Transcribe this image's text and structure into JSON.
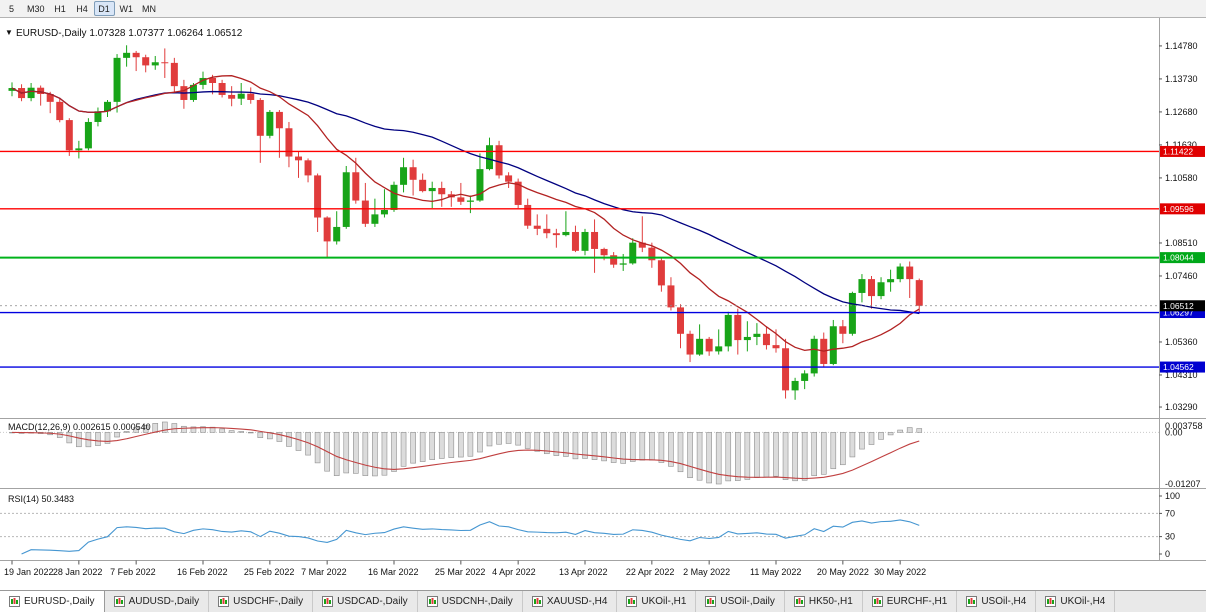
{
  "toolbar": {
    "timeframes": [
      "5",
      "M30",
      "H1",
      "H4",
      "D1",
      "W1",
      "MN"
    ],
    "active": "D1"
  },
  "chart_header": {
    "symbol": "EURUSD-,Daily",
    "open": "1.07328",
    "high": "1.07377",
    "low": "1.06264",
    "close": "1.06512",
    "text": "EURUSD-,Daily 1.07328 1.07377 1.06264 1.06512"
  },
  "indicators": {
    "macd": {
      "title": "MACD(12,26,9) 0.002615 0.000540",
      "name": "MACD(12,26,9)",
      "values": "0.002615 0.000540",
      "params": {
        "fast": 12,
        "slow": 26,
        "signal": 9
      },
      "axis_labels": [
        "0.003758",
        "0.00",
        "-0.01207"
      ]
    },
    "rsi": {
      "title": "RSI(14) 50.3483",
      "name": "RSI(14)",
      "value": "50.3483",
      "period": 14,
      "levels": [
        70,
        30
      ],
      "axis_labels": [
        {
          "value": 100,
          "label": "100"
        },
        {
          "value": 70,
          "label": "70"
        },
        {
          "value": 30,
          "label": "30"
        },
        {
          "value": 0,
          "label": "0"
        }
      ]
    }
  },
  "colors": {
    "candle_up": "#18A418",
    "candle_down": "#E03C3C",
    "ma_fast": "#B22222",
    "ma_slow": "#000080",
    "hline_red": "#FF0000",
    "hline_green": "#00B31B",
    "hline_blue": "#0000E0",
    "macd_bar_fill": "#DCDCDC",
    "macd_bar_stroke": "#8F8F8F",
    "macd_signal": "#C04040",
    "rsi_line": "#4596D1",
    "badge_current": "#000000",
    "badge_red": "#E00000",
    "badge_green": "#00A819",
    "badge_blue": "#0000D0"
  },
  "chart_data": {
    "type": "candlestick",
    "symbol": "EURUSD",
    "timeframe": "Daily",
    "y_axis": {
      "top_price": 1.1535,
      "bottom_price": 1.031,
      "labels": [
        {
          "value": 1.1478,
          "label": "1.14780"
        },
        {
          "value": 1.1373,
          "label": "1.13730"
        },
        {
          "value": 1.1268,
          "label": "1.12680"
        },
        {
          "value": 1.1163,
          "label": "1.11630"
        },
        {
          "value": 1.1058,
          "label": "1.10580"
        },
        {
          "value": 1.0851,
          "label": "1.08510"
        },
        {
          "value": 1.0746,
          "label": "1.07460"
        },
        {
          "value": 1.0536,
          "label": "1.05360"
        },
        {
          "value": 1.0431,
          "label": "1.04310"
        },
        {
          "value": 1.0329,
          "label": "1.03290"
        }
      ]
    },
    "x_axis": {
      "ticks": [
        {
          "index": 0,
          "label": "19 Jan 2022"
        },
        {
          "index": 7,
          "label": "28 Jan 2022"
        },
        {
          "index": 13,
          "label": "7 Feb 2022"
        },
        {
          "index": 20,
          "label": "16 Feb 2022"
        },
        {
          "index": 27,
          "label": "25 Feb 2022"
        },
        {
          "index": 33,
          "label": "7 Mar 2022"
        },
        {
          "index": 40,
          "label": "16 Mar 2022"
        },
        {
          "index": 47,
          "label": "25 Mar 2022"
        },
        {
          "index": 53,
          "label": "4 Apr 2022"
        },
        {
          "index": 60,
          "label": "13 Apr 2022"
        },
        {
          "index": 67,
          "label": "22 Apr 2022"
        },
        {
          "index": 73,
          "label": "2 May 2022"
        },
        {
          "index": 80,
          "label": "11 May 2022"
        },
        {
          "index": 87,
          "label": "20 May 2022"
        },
        {
          "index": 93,
          "label": "30 May 2022"
        }
      ]
    },
    "moving_averages": [
      {
        "period": 34,
        "color": "#000080"
      },
      {
        "period": 13,
        "color": "#B22222"
      }
    ],
    "h_lines": [
      {
        "price": 1.11422,
        "color": "#FF0000",
        "width": 1.4
      },
      {
        "price": 1.09596,
        "color": "#FF0000",
        "width": 1.4
      },
      {
        "price": 1.08044,
        "color": "#00B31B",
        "width": 2
      },
      {
        "price": 1.06297,
        "color": "#0000E0",
        "width": 1.4
      },
      {
        "price": 1.04562,
        "color": "#0000E0",
        "width": 1.4
      }
    ],
    "price_badges": [
      {
        "value": 1.11422,
        "label": "1.11422",
        "color": "#E00000"
      },
      {
        "value": 1.09596,
        "label": "1.09596",
        "color": "#E00000"
      },
      {
        "value": 1.08044,
        "label": "1.08044",
        "color": "#00A819"
      },
      {
        "value": 1.06297,
        "label": "1.06297",
        "color": "#0000D0"
      },
      {
        "value": 1.06512,
        "label": "1.06512",
        "color": "#000000"
      },
      {
        "value": 1.04562,
        "label": "1.04562",
        "color": "#0000D0"
      }
    ],
    "candles": [
      [
        1.1335,
        1.1362,
        1.1318,
        1.1344
      ],
      [
        1.1344,
        1.1356,
        1.1302,
        1.1312
      ],
      [
        1.1312,
        1.136,
        1.1302,
        1.1345
      ],
      [
        1.1345,
        1.1352,
        1.1288,
        1.1325
      ],
      [
        1.1325,
        1.1332,
        1.1264,
        1.13
      ],
      [
        1.13,
        1.131,
        1.1235,
        1.1242
      ],
      [
        1.1242,
        1.1248,
        1.1128,
        1.1146
      ],
      [
        1.1146,
        1.1176,
        1.112,
        1.1152
      ],
      [
        1.1152,
        1.1248,
        1.1146,
        1.1236
      ],
      [
        1.1236,
        1.1282,
        1.1222,
        1.127
      ],
      [
        1.127,
        1.1306,
        1.1252,
        1.13
      ],
      [
        1.13,
        1.1452,
        1.1266,
        1.144
      ],
      [
        1.144,
        1.148,
        1.1412,
        1.1456
      ],
      [
        1.1456,
        1.1462,
        1.1398,
        1.1442
      ],
      [
        1.1442,
        1.145,
        1.1394,
        1.1416
      ],
      [
        1.1416,
        1.1446,
        1.1402,
        1.1426
      ],
      [
        1.1426,
        1.147,
        1.1376,
        1.1424
      ],
      [
        1.1424,
        1.144,
        1.1328,
        1.135
      ],
      [
        1.135,
        1.137,
        1.1278,
        1.1306
      ],
      [
        1.1306,
        1.136,
        1.13,
        1.1354
      ],
      [
        1.1354,
        1.1396,
        1.134,
        1.1376
      ],
      [
        1.1376,
        1.1386,
        1.1324,
        1.136
      ],
      [
        1.136,
        1.137,
        1.1314,
        1.1322
      ],
      [
        1.1322,
        1.135,
        1.1286,
        1.131
      ],
      [
        1.131,
        1.136,
        1.129,
        1.1326
      ],
      [
        1.1326,
        1.1346,
        1.1294,
        1.1306
      ],
      [
        1.1306,
        1.1312,
        1.1106,
        1.1192
      ],
      [
        1.1192,
        1.1274,
        1.1184,
        1.1268
      ],
      [
        1.1268,
        1.1274,
        1.1122,
        1.1216
      ],
      [
        1.1216,
        1.1236,
        1.1092,
        1.1126
      ],
      [
        1.1126,
        1.1142,
        1.1058,
        1.1114
      ],
      [
        1.1114,
        1.112,
        1.1044,
        1.1066
      ],
      [
        1.1066,
        1.1072,
        1.0886,
        1.0932
      ],
      [
        1.0932,
        1.0936,
        1.0806,
        1.0856
      ],
      [
        1.0856,
        1.0952,
        1.0846,
        1.0902
      ],
      [
        1.0902,
        1.1096,
        1.0896,
        1.1076
      ],
      [
        1.1076,
        1.1122,
        1.0976,
        1.0986
      ],
      [
        1.0986,
        1.1042,
        1.0902,
        1.0912
      ],
      [
        1.0912,
        1.0992,
        1.0902,
        1.0942
      ],
      [
        1.0942,
        1.1022,
        1.0932,
        1.0956
      ],
      [
        1.0956,
        1.1046,
        1.095,
        1.1036
      ],
      [
        1.1036,
        1.1122,
        1.1012,
        1.1092
      ],
      [
        1.1092,
        1.1116,
        1.1002,
        1.1052
      ],
      [
        1.1052,
        1.1072,
        1.1012,
        1.1016
      ],
      [
        1.1016,
        1.1046,
        1.0962,
        1.1026
      ],
      [
        1.1026,
        1.1046,
        1.0966,
        1.1006
      ],
      [
        1.1006,
        1.1016,
        1.0966,
        1.0996
      ],
      [
        1.0996,
        1.1042,
        1.0972,
        1.0982
      ],
      [
        1.0982,
        1.1002,
        1.0946,
        1.0986
      ],
      [
        1.0986,
        1.1136,
        1.0982,
        1.1086
      ],
      [
        1.1086,
        1.1186,
        1.1082,
        1.1162
      ],
      [
        1.1162,
        1.1176,
        1.1056,
        1.1066
      ],
      [
        1.1066,
        1.1076,
        1.1026,
        1.1046
      ],
      [
        1.1046,
        1.1056,
        1.0962,
        1.0972
      ],
      [
        1.0972,
        1.0992,
        1.0896,
        1.0906
      ],
      [
        1.0906,
        1.0942,
        1.0876,
        1.0896
      ],
      [
        1.0896,
        1.0942,
        1.0866,
        1.0882
      ],
      [
        1.0882,
        1.0896,
        1.0836,
        1.0876
      ],
      [
        1.0876,
        1.0952,
        1.0872,
        1.0886
      ],
      [
        1.0886,
        1.0906,
        1.0822,
        1.0826
      ],
      [
        1.0826,
        1.0896,
        1.0812,
        1.0886
      ],
      [
        1.0886,
        1.0926,
        1.0756,
        1.0832
      ],
      [
        1.0832,
        1.0836,
        1.0796,
        1.0812
      ],
      [
        1.0812,
        1.0822,
        1.0772,
        1.0782
      ],
      [
        1.0782,
        1.0816,
        1.0762,
        1.0786
      ],
      [
        1.0786,
        1.0866,
        1.0782,
        1.0852
      ],
      [
        1.0852,
        1.0936,
        1.0822,
        1.0836
      ],
      [
        1.0836,
        1.0852,
        1.0772,
        1.0796
      ],
      [
        1.0796,
        1.0802,
        1.0696,
        1.0716
      ],
      [
        1.0716,
        1.0742,
        1.0636,
        1.0646
      ],
      [
        1.0646,
        1.0656,
        1.0516,
        1.0562
      ],
      [
        1.0562,
        1.0572,
        1.0472,
        1.0496
      ],
      [
        1.0496,
        1.0592,
        1.0492,
        1.0546
      ],
      [
        1.0546,
        1.0552,
        1.0492,
        1.0506
      ],
      [
        1.0506,
        1.0576,
        1.0496,
        1.0522
      ],
      [
        1.0522,
        1.0632,
        1.0506,
        1.0622
      ],
      [
        1.0622,
        1.0642,
        1.0496,
        1.0542
      ],
      [
        1.0542,
        1.0602,
        1.0506,
        1.0552
      ],
      [
        1.0552,
        1.0596,
        1.0526,
        1.0562
      ],
      [
        1.0562,
        1.0586,
        1.0512,
        1.0526
      ],
      [
        1.0526,
        1.0576,
        1.0502,
        1.0516
      ],
      [
        1.0516,
        1.0546,
        1.0356,
        1.0382
      ],
      [
        1.0382,
        1.0422,
        1.0352,
        1.0412
      ],
      [
        1.0412,
        1.0446,
        1.0386,
        1.0436
      ],
      [
        1.0436,
        1.0556,
        1.0426,
        1.0546
      ],
      [
        1.0546,
        1.0566,
        1.0456,
        1.0466
      ],
      [
        1.0466,
        1.0606,
        1.0462,
        1.0586
      ],
      [
        1.0586,
        1.0606,
        1.0532,
        1.0562
      ],
      [
        1.0562,
        1.0696,
        1.0556,
        1.0692
      ],
      [
        1.0692,
        1.0752,
        1.0662,
        1.0736
      ],
      [
        1.0736,
        1.0746,
        1.0642,
        1.0682
      ],
      [
        1.0682,
        1.0742,
        1.0672,
        1.0726
      ],
      [
        1.0726,
        1.0766,
        1.0696,
        1.0736
      ],
      [
        1.0736,
        1.0786,
        1.0726,
        1.0776
      ],
      [
        1.0776,
        1.0792,
        1.0676,
        1.0736
      ],
      [
        1.07328,
        1.07377,
        1.06264,
        1.06512
      ]
    ]
  },
  "tabs": [
    {
      "label": "EURUSD-,Daily",
      "active": true
    },
    {
      "label": "AUDUSD-,Daily",
      "active": false
    },
    {
      "label": "USDCHF-,Daily",
      "active": false
    },
    {
      "label": "USDCAD-,Daily",
      "active": false
    },
    {
      "label": "USDCNH-,Daily",
      "active": false
    },
    {
      "label": "XAUUSD-,H4",
      "active": false
    },
    {
      "label": "UKOil-,H1",
      "active": false
    },
    {
      "label": "USOil-,Daily",
      "active": false
    },
    {
      "label": "HK50-,H1",
      "active": false
    },
    {
      "label": "EURCHF-,H1",
      "active": false
    },
    {
      "label": "USOil-,H4",
      "active": false
    },
    {
      "label": "UKOil-,H4",
      "active": false
    }
  ]
}
